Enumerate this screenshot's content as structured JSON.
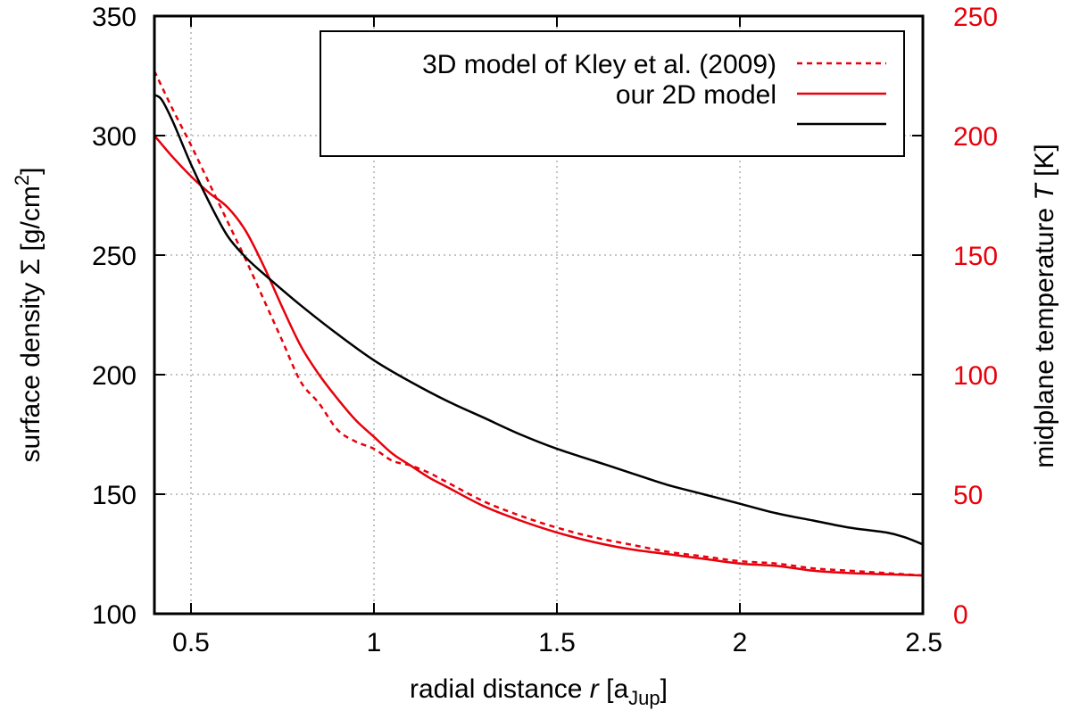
{
  "chart_data": {
    "type": "line",
    "x_axis": {
      "label": "radial distance ",
      "label_var": "r",
      "label_unit_open": " [a",
      "label_unit_sub": "Jup",
      "label_unit_close": "]",
      "range": [
        0.4,
        2.5
      ],
      "ticks": [
        0.5,
        1,
        1.5,
        2,
        2.5
      ],
      "tick_labels": [
        "0.5",
        "1",
        "1.5",
        "2",
        "2.5"
      ],
      "grid": true
    },
    "y_left": {
      "label": "surface density Σ [g/cm",
      "label_sup": "2",
      "label_close": "]",
      "range": [
        100,
        350
      ],
      "ticks": [
        100,
        150,
        200,
        250,
        300,
        350
      ],
      "tick_labels": [
        "100",
        "150",
        "200",
        "250",
        "300",
        "350"
      ],
      "color": "#000000",
      "grid": true
    },
    "y_right": {
      "label": "midplane temperature ",
      "label_var": "T",
      "label_unit": " [K]",
      "range": [
        0,
        250
      ],
      "ticks": [
        0,
        50,
        100,
        150,
        200,
        250
      ],
      "tick_labels": [
        "0",
        "50",
        "100",
        "150",
        "200",
        "250"
      ],
      "color": "#e8000b"
    },
    "legend": {
      "position": "top-right",
      "entries": [
        {
          "label": "3D model of Kley et al. (2009)",
          "color": "#e8000b",
          "dash": true
        },
        {
          "label": "our 2D model",
          "color": "#e8000b",
          "dash": false
        },
        {
          "label": "",
          "color": "#000000",
          "dash": false
        }
      ]
    },
    "series": [
      {
        "name": "3D model of Kley et al. (2009)",
        "axis": "right",
        "color": "#e8000b",
        "dash": true,
        "x": [
          0.4,
          0.45,
          0.5,
          0.55,
          0.6,
          0.65,
          0.7,
          0.75,
          0.8,
          0.85,
          0.9,
          0.95,
          1.0,
          1.05,
          1.1,
          1.15,
          1.2,
          1.3,
          1.4,
          1.5,
          1.6,
          1.7,
          1.8,
          1.9,
          2.0,
          2.1,
          2.2,
          2.3,
          2.4,
          2.5
        ],
        "y": [
          227,
          211,
          196,
          180,
          164,
          148,
          131,
          114,
          97,
          88,
          77,
          72,
          69,
          64,
          62,
          59,
          55,
          47,
          41,
          36,
          32,
          29,
          26,
          24,
          22,
          21,
          19,
          18,
          17,
          16
        ]
      },
      {
        "name": "our 2D model",
        "axis": "right",
        "color": "#e8000b",
        "dash": false,
        "x": [
          0.4,
          0.45,
          0.5,
          0.55,
          0.6,
          0.65,
          0.7,
          0.75,
          0.8,
          0.85,
          0.9,
          0.95,
          1.0,
          1.05,
          1.1,
          1.15,
          1.2,
          1.3,
          1.4,
          1.5,
          1.6,
          1.7,
          1.8,
          1.9,
          2.0,
          2.1,
          2.2,
          2.3,
          2.4,
          2.5
        ],
        "y": [
          200,
          191,
          183,
          176,
          170,
          160,
          145,
          128,
          112,
          100,
          90,
          81,
          74,
          67,
          62,
          57,
          53,
          45,
          39,
          34,
          30,
          27,
          25,
          23,
          21,
          20,
          18,
          17,
          16.5,
          16
        ]
      },
      {
        "name": "surface density",
        "axis": "left",
        "color": "#000000",
        "dash": false,
        "x": [
          0.4,
          0.42,
          0.45,
          0.5,
          0.55,
          0.6,
          0.65,
          0.7,
          0.8,
          0.9,
          1.0,
          1.1,
          1.2,
          1.3,
          1.4,
          1.5,
          1.6,
          1.7,
          1.8,
          1.9,
          2.0,
          2.1,
          2.2,
          2.3,
          2.4,
          2.45,
          2.5
        ],
        "y": [
          317,
          315,
          306,
          288,
          272,
          258,
          249,
          242,
          229,
          217,
          206,
          197,
          189,
          182,
          175,
          169,
          164,
          159,
          154,
          150,
          146,
          142,
          139,
          136,
          134,
          132,
          129
        ]
      }
    ]
  }
}
